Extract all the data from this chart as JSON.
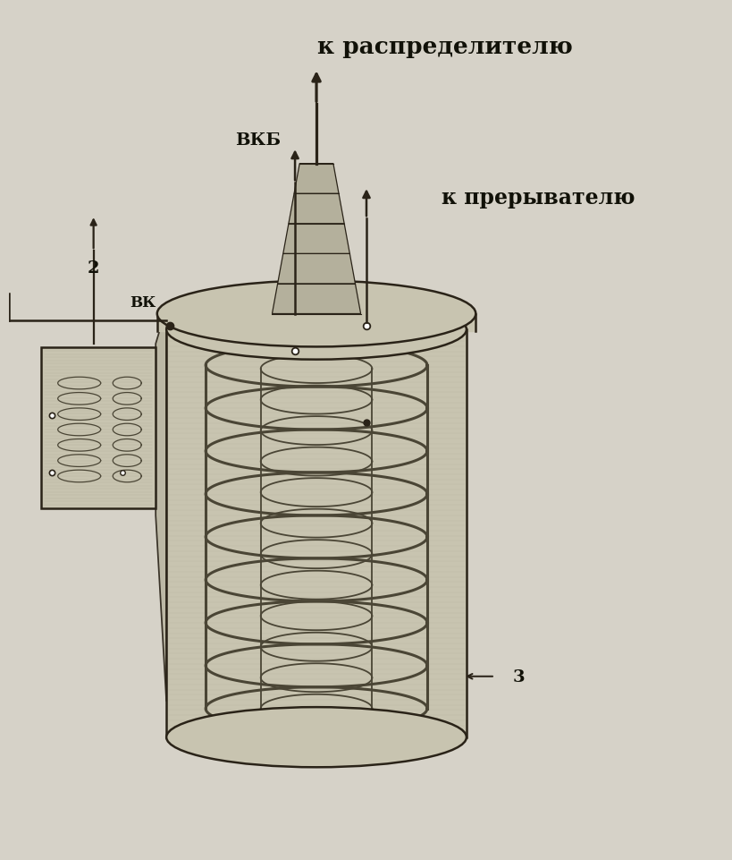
{
  "bg_color": "#d6d2c8",
  "coil_color": "#4a4535",
  "line_color": "#2a2318",
  "text_color": "#111108",
  "fill_color": "#c4c0ac",
  "fill_dark": "#a8a490",
  "fill_light": "#c8c4b0",
  "tower_fill": "#b4b09c",
  "label_vkb": "ВКБ",
  "label_vk": "ВК",
  "label_k_rasp": "к распределителю",
  "label_k_prer": "к прерывателю",
  "label_2": "2",
  "label_3": "3",
  "figsize": [
    8.2,
    9.62
  ],
  "dpi": 100
}
